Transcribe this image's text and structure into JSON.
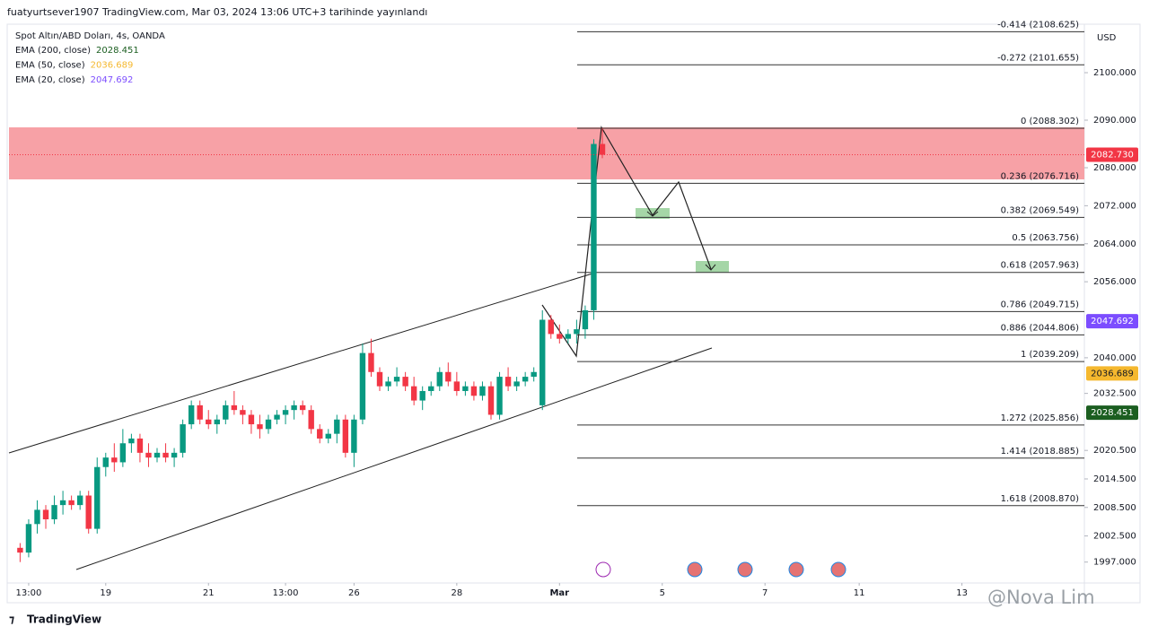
{
  "header": "fuatyurtsever1907 TradingView.com, Mar 03, 2024 13:06 UTC+3 tarihinde yayınlandı",
  "chart_data": {
    "type": "candlestick",
    "title": "Spot Altın/ABD Doları, 4s, OANDA",
    "currency": "USD",
    "x": [
      0,
      1,
      2,
      3,
      4,
      5,
      6,
      7,
      8,
      9,
      10,
      11,
      12,
      13,
      14,
      15,
      16,
      17,
      18,
      19,
      20,
      21,
      22,
      23,
      24,
      25,
      26,
      27,
      28,
      29,
      30,
      31,
      32,
      33,
      34,
      35,
      36,
      37,
      38,
      39,
      40,
      41,
      42,
      43,
      44,
      45,
      46,
      47,
      48,
      49,
      50,
      51,
      52,
      53,
      54,
      55,
      56,
      57,
      58,
      59,
      60,
      61,
      62,
      63,
      64,
      65,
      66,
      67,
      68
    ],
    "open": [
      2000,
      1999,
      2005,
      2008,
      2006,
      2009,
      2010,
      2009,
      2011,
      2004,
      2017,
      2019,
      2018,
      2022,
      2023,
      2020,
      2019,
      2020,
      2019,
      2020,
      2026,
      2030,
      2027,
      2026,
      2027,
      2030,
      2029,
      2028,
      2026,
      2025,
      2027,
      2028,
      2029,
      2030,
      2029,
      2025,
      2023,
      2024,
      2027,
      2020,
      2027,
      2041,
      2037,
      2034,
      2035,
      2036,
      2034,
      2031,
      2033,
      2034,
      2037,
      2035,
      2033,
      2034,
      2032,
      2034,
      2028,
      2036,
      2034,
      2035,
      2036,
      2030,
      2048,
      2045,
      2044,
      2045,
      2046,
      2050,
      2085
    ],
    "high": [
      2001,
      2006,
      2010,
      2009,
      2011,
      2012,
      2011,
      2012,
      2012,
      2019,
      2020,
      2022,
      2025,
      2024,
      2024,
      2022,
      2021,
      2022,
      2021,
      2027,
      2031,
      2031,
      2029,
      2028,
      2031,
      2033,
      2030,
      2029,
      2028,
      2028,
      2029,
      2030,
      2031,
      2031,
      2030,
      2026,
      2025,
      2028,
      2028,
      2028,
      2043,
      2044,
      2038,
      2036,
      2038,
      2037,
      2036,
      2034,
      2035,
      2038,
      2039,
      2037,
      2035,
      2035,
      2035,
      2035,
      2037,
      2038,
      2036,
      2037,
      2038,
      2050,
      2049,
      2047,
      2046,
      2048,
      2051,
      2086,
      2088.3
    ],
    "low": [
      1997,
      1998,
      2003,
      2004,
      2005,
      2007,
      2008,
      2008,
      2003,
      2003,
      2015,
      2016,
      2017,
      2020,
      2018,
      2017,
      2018,
      2018,
      2017,
      2019,
      2025,
      2026,
      2025,
      2024,
      2026,
      2028,
      2026,
      2024,
      2023,
      2024,
      2026,
      2026,
      2027,
      2028,
      2024,
      2022,
      2022,
      2022,
      2019,
      2017,
      2026,
      2036,
      2033,
      2033,
      2034,
      2033,
      2030,
      2029,
      2032,
      2033,
      2034,
      2032,
      2032,
      2031,
      2031,
      2027,
      2027,
      2033,
      2033,
      2034,
      2035,
      2029,
      2044,
      2043,
      2043,
      2043,
      2044,
      2048,
      2082
    ],
    "close": [
      1999,
      2005,
      2008,
      2006,
      2009,
      2010,
      2009,
      2011,
      2004,
      2017,
      2019,
      2018,
      2022,
      2023,
      2020,
      2019,
      2020,
      2019,
      2020,
      2026,
      2030,
      2027,
      2026,
      2027,
      2030,
      2029,
      2028,
      2026,
      2025,
      2027,
      2028,
      2029,
      2030,
      2029,
      2025,
      2023,
      2024,
      2027,
      2020,
      2027,
      2041,
      2037,
      2034,
      2035,
      2036,
      2034,
      2031,
      2033,
      2034,
      2037,
      2035,
      2033,
      2034,
      2032,
      2034,
      2028,
      2036,
      2034,
      2035,
      2036,
      2037,
      2048,
      2045,
      2044,
      2045,
      2046,
      2050,
      2085,
      2082.73
    ],
    "up_color": "#089981",
    "down_color": "#f23645",
    "xlim": [
      -1.3,
      124.3
    ],
    "xticks": [
      {
        "value": 1,
        "label": "13:00"
      },
      {
        "value": 10,
        "label": "19"
      },
      {
        "value": 22,
        "label": "21"
      },
      {
        "value": 31,
        "label": "13:00"
      },
      {
        "value": 39,
        "label": "26"
      },
      {
        "value": 51,
        "label": "28"
      },
      {
        "value": 63,
        "label": "Mar"
      },
      {
        "value": 75,
        "label": "5"
      },
      {
        "value": 87,
        "label": "7"
      },
      {
        "value": 98,
        "label": "11"
      },
      {
        "value": 110,
        "label": "13"
      }
    ],
    "ylim": [
      1992.6,
      2110.2
    ],
    "yticks": [
      {
        "value": 2100,
        "label": "2100.000"
      },
      {
        "value": 2090,
        "label": "2090.000"
      },
      {
        "value": 2080,
        "label": "2080.000"
      },
      {
        "value": 2072,
        "label": "2072.000"
      },
      {
        "value": 2064,
        "label": "2064.000"
      },
      {
        "value": 2056,
        "label": "2056.000"
      },
      {
        "value": 2040,
        "label": "2040.000"
      },
      {
        "value": 2032.5,
        "label": "2032.500"
      },
      {
        "value": 2020.5,
        "label": "2020.500"
      },
      {
        "value": 2014.5,
        "label": "2014.500"
      },
      {
        "value": 2008.5,
        "label": "2008.500"
      },
      {
        "value": 2002.5,
        "label": "2002.500"
      },
      {
        "value": 1997,
        "label": "1997.000"
      }
    ],
    "last_price": {
      "value": 2082.73,
      "label": "2082.730"
    },
    "last_price_color": "#f23645",
    "indicators": [
      {
        "name": "EMA (200, close)",
        "value": 2028.451,
        "color": "#1b5e20",
        "text_color": "#ffffff"
      },
      {
        "name": "EMA (50, close)",
        "value": 2036.689,
        "color": "#f5b82e",
        "text_color": "#131722"
      },
      {
        "name": "EMA (20, close)",
        "value": 2047.692,
        "color": "#7c4dff",
        "text_color": "#ffffff"
      }
    ],
    "fib_levels": [
      {
        "label": "-0.414 (2108.625)",
        "value": 2108.625
      },
      {
        "label": "-0.272 (2101.655)",
        "value": 2101.655
      },
      {
        "label": "0 (2088.302)",
        "value": 2088.302
      },
      {
        "label": "0.236 (2076.716)",
        "value": 2076.716
      },
      {
        "label": "0.382 (2069.549)",
        "value": 2069.549
      },
      {
        "label": "0.5 (2063.756)",
        "value": 2063.756
      },
      {
        "label": "0.618 (2057.963)",
        "value": 2057.963
      },
      {
        "label": "0.786 (2049.715)",
        "value": 2049.715
      },
      {
        "label": "0.886 (2044.806)",
        "value": 2044.806
      },
      {
        "label": "1 (2039.209)",
        "value": 2039.209
      },
      {
        "label": "1.272 (2025.856)",
        "value": 2025.856
      },
      {
        "label": "1.414 (2018.885)",
        "value": 2018.885
      },
      {
        "label": "1.618 (2008.870)",
        "value": 2008.87
      }
    ]
  },
  "footer": {
    "logo": "TradingView",
    "watermark": "@Nova Lim"
  }
}
